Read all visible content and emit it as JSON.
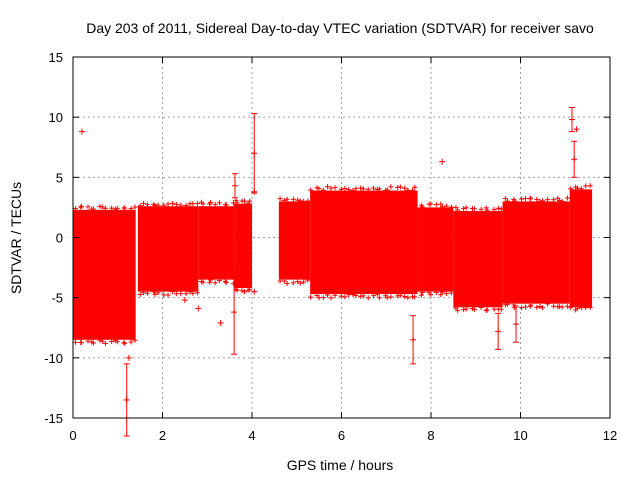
{
  "chart_data": {
    "type": "scatter",
    "title": "Day 203 of 2011, Sidereal Day-to-day VTEC variation (SDTVAR) for receiver savo",
    "xlabel": "GPS time / hours",
    "ylabel": "SDTVAR / TECUs",
    "xlim": [
      0,
      12
    ],
    "ylim": [
      -15,
      15
    ],
    "xticks": [
      0,
      2,
      4,
      6,
      8,
      10,
      12
    ],
    "yticks": [
      -15,
      -10,
      -5,
      0,
      5,
      10,
      15
    ],
    "grid": true,
    "marker": "+ with error bars",
    "series_color": "#ff0000",
    "series": [
      {
        "name": "SDTVAR",
        "bands": [
          {
            "x": [
              0.0,
              1.4
            ],
            "low": -8.5,
            "high": 2.3
          },
          {
            "x": [
              1.45,
              2.8
            ],
            "low": -4.5,
            "high": 2.6
          },
          {
            "x": [
              2.8,
              3.6
            ],
            "low": -3.5,
            "high": 2.6
          },
          {
            "x": [
              3.6,
              4.0
            ],
            "low": -4.2,
            "high": 2.8
          },
          {
            "x": [
              4.6,
              5.3
            ],
            "low": -3.5,
            "high": 3.0
          },
          {
            "x": [
              5.3,
              7.7
            ],
            "low": -4.7,
            "high": 3.9
          },
          {
            "x": [
              7.7,
              8.5
            ],
            "low": -4.5,
            "high": 2.5
          },
          {
            "x": [
              8.5,
              9.6
            ],
            "low": -5.8,
            "high": 2.2
          },
          {
            "x": [
              9.6,
              11.1
            ],
            "low": -5.5,
            "high": 3.0
          },
          {
            "x": [
              11.1,
              11.6
            ],
            "low": -5.8,
            "high": 4.0
          }
        ],
        "outliers": [
          {
            "x": 0.2,
            "y": 8.8
          },
          {
            "x": 1.2,
            "y": -13.5,
            "err": 3.0
          },
          {
            "x": 1.25,
            "y": -10.0
          },
          {
            "x": 2.5,
            "y": -5.2
          },
          {
            "x": 2.8,
            "y": -5.9
          },
          {
            "x": 3.3,
            "y": -7.1
          },
          {
            "x": 3.6,
            "y": -6.2,
            "err": 3.5
          },
          {
            "x": 3.62,
            "y": 4.3,
            "err": 1.0
          },
          {
            "x": 4.05,
            "y": 7.0,
            "err": 3.3
          },
          {
            "x": 4.05,
            "y": 3.8
          },
          {
            "x": 4.05,
            "y": -4.5
          },
          {
            "x": 7.6,
            "y": -8.5,
            "err": 2.0
          },
          {
            "x": 8.25,
            "y": 6.3
          },
          {
            "x": 9.5,
            "y": -7.8,
            "err": 1.5
          },
          {
            "x": 9.9,
            "y": -7.2,
            "err": 1.5
          },
          {
            "x": 11.15,
            "y": 9.8,
            "err": 1.0
          },
          {
            "x": 11.25,
            "y": 9.0
          },
          {
            "x": 11.2,
            "y": 6.5,
            "err": 1.5
          }
        ]
      }
    ]
  }
}
